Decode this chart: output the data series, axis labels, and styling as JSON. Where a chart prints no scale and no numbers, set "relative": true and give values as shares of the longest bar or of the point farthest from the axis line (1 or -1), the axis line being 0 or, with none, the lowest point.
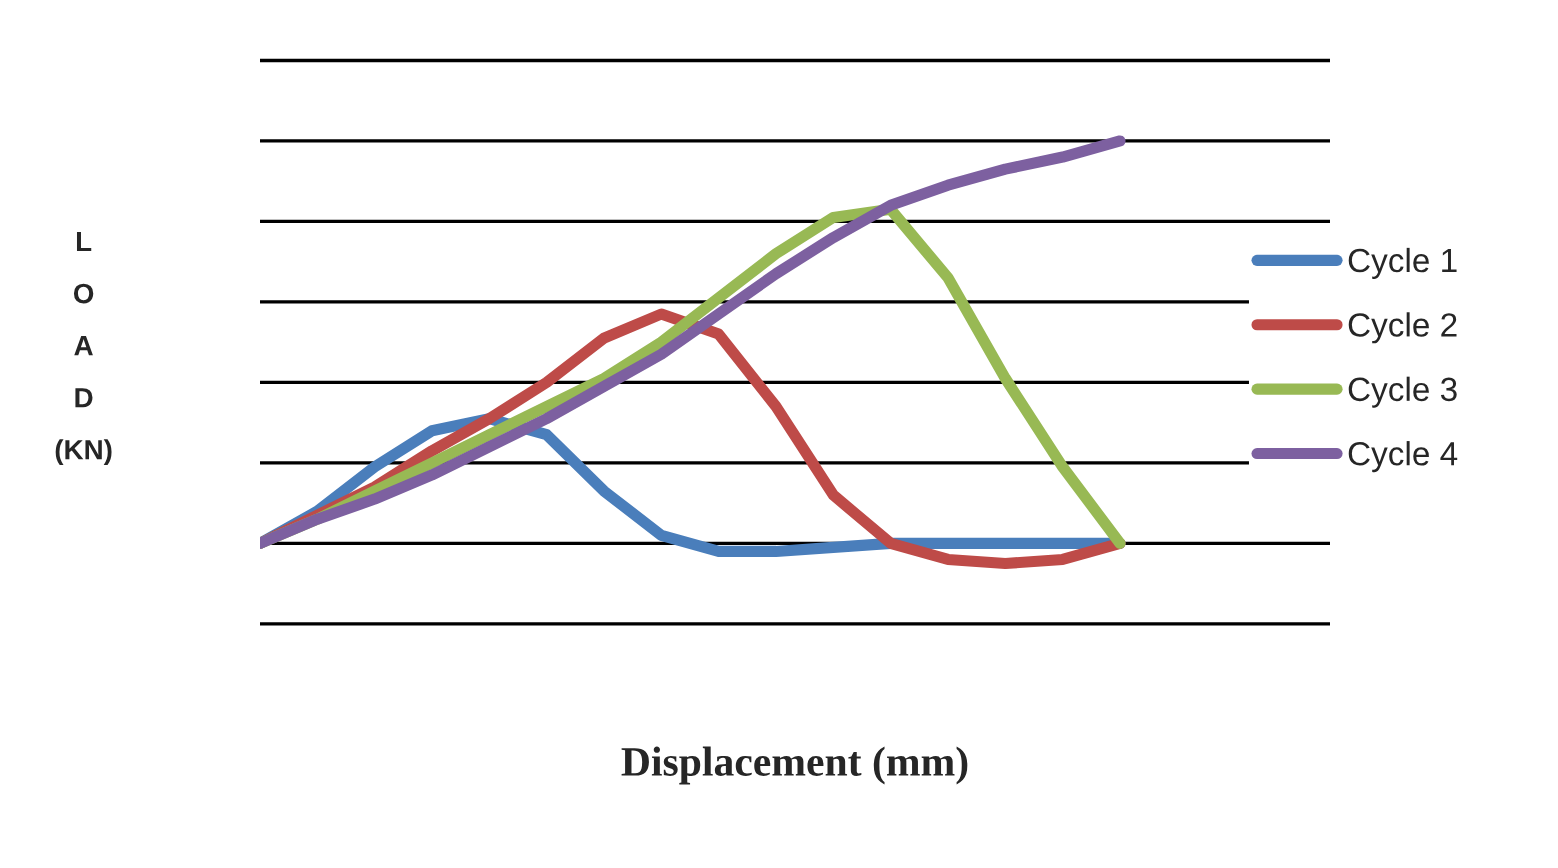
{
  "chart_data": {
    "type": "line",
    "relative": true,
    "xlabel": "Displacement (mm)",
    "ylabel": "L\nO\nA\nD\n(KN)",
    "grid": "y",
    "legend": "right",
    "marker": "none",
    "line_style": "solid",
    "categories": [
      null,
      null,
      null,
      null,
      null,
      null,
      null,
      null,
      null,
      null,
      null,
      null,
      null,
      null,
      null,
      null
    ],
    "series": [
      {
        "name": "Cycle 1",
        "color": "#4a7ebb",
        "values": [
          0,
          0.08,
          0.19,
          0.28,
          0.31,
          0.27,
          0.13,
          0.02,
          -0.02,
          -0.02,
          -0.01,
          0,
          0,
          0,
          0,
          0
        ]
      },
      {
        "name": "Cycle 2",
        "color": "#be4b48",
        "values": [
          0,
          0.07,
          0.14,
          0.23,
          0.31,
          0.4,
          0.51,
          0.57,
          0.52,
          0.34,
          0.12,
          0,
          -0.04,
          -0.05,
          -0.04,
          0
        ]
      },
      {
        "name": "Cycle 3",
        "color": "#98b954",
        "values": [
          0,
          0.06,
          0.13,
          0.2,
          0.27,
          0.34,
          0.41,
          0.5,
          0.61,
          0.72,
          0.81,
          0.83,
          0.66,
          0.41,
          0.19,
          0
        ]
      },
      {
        "name": "Cycle 4",
        "color": "#7d60a0",
        "values": [
          0,
          0.06,
          0.11,
          0.17,
          0.24,
          0.31,
          0.39,
          0.47,
          0.57,
          0.67,
          0.76,
          0.84,
          0.89,
          0.93,
          0.96,
          1.0
        ]
      }
    ]
  }
}
